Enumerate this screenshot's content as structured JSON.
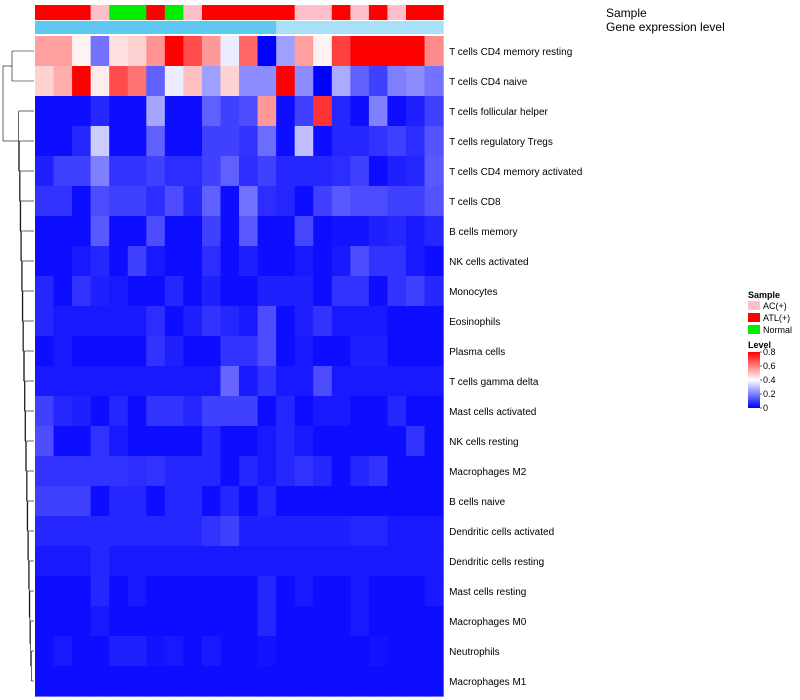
{
  "chart_data": {
    "type": "heatmap",
    "title": "",
    "annotation_rows": [
      "Sample",
      "Gene expression level"
    ],
    "sample_groups": [
      "ATL(+)",
      "ATL(+)",
      "ATL(+)",
      "AC(+)",
      "Normal",
      "Normal",
      "ATL(+)",
      "Normal",
      "AC(+)",
      "ATL(+)",
      "ATL(+)",
      "ATL(+)",
      "ATL(+)",
      "ATL(+)",
      "AC(+)",
      "AC(+)",
      "ATL(+)",
      "AC(+)",
      "ATL(+)",
      "AC(+)",
      "ATL(+)",
      "ATL(+)"
    ],
    "expression_levels": [
      "high",
      "high",
      "high",
      "high",
      "high",
      "high",
      "high",
      "high",
      "high",
      "high",
      "high",
      "high",
      "high",
      "low",
      "low",
      "low",
      "low",
      "low",
      "low",
      "low",
      "low",
      "low"
    ],
    "rows": [
      "T cells CD4 memory resting",
      "T cells CD4 naive",
      "T cells follicular helper",
      "T cells regulatory  Tregs",
      "T cells CD4 memory activated",
      "T cells CD8",
      "B cells memory",
      "NK cells activated",
      "Monocytes",
      "Eosinophils",
      "Plasma cells",
      "T cells gamma delta",
      "Mast cells activated",
      "NK cells resting",
      "Macrophages M2",
      "B cells naive",
      "Dendritic cells activated",
      "Dendritic cells resting",
      "Mast cells resting",
      "Macrophages M0",
      "Neutrophils",
      "Macrophages M1"
    ],
    "values": [
      [
        0.55,
        0.55,
        0.42,
        0.18,
        0.45,
        0.47,
        0.57,
        0.8,
        0.68,
        0.56,
        0.37,
        0.64,
        0.0,
        0.25,
        0.55,
        0.42,
        0.7,
        0.8,
        0.8,
        0.8,
        0.8,
        0.58
      ],
      [
        0.47,
        0.53,
        0.8,
        0.43,
        0.68,
        0.62,
        0.15,
        0.37,
        0.5,
        0.25,
        0.47,
        0.22,
        0.22,
        0.8,
        0.22,
        0.0,
        0.27,
        0.15,
        0.1,
        0.2,
        0.22,
        0.18
      ],
      [
        0.02,
        0.02,
        0.02,
        0.06,
        0.02,
        0.02,
        0.26,
        0.02,
        0.02,
        0.15,
        0.1,
        0.12,
        0.56,
        0.02,
        0.1,
        0.72,
        0.06,
        0.02,
        0.2,
        0.02,
        0.05,
        0.1
      ],
      [
        0.02,
        0.02,
        0.06,
        0.32,
        0.02,
        0.02,
        0.15,
        0.02,
        0.02,
        0.1,
        0.1,
        0.08,
        0.17,
        0.02,
        0.3,
        0.02,
        0.06,
        0.06,
        0.08,
        0.1,
        0.07,
        0.13
      ],
      [
        0.05,
        0.1,
        0.1,
        0.2,
        0.08,
        0.08,
        0.1,
        0.07,
        0.07,
        0.1,
        0.15,
        0.07,
        0.1,
        0.06,
        0.06,
        0.06,
        0.07,
        0.1,
        0.02,
        0.05,
        0.06,
        0.14
      ],
      [
        0.08,
        0.08,
        0.02,
        0.12,
        0.1,
        0.1,
        0.07,
        0.12,
        0.06,
        0.15,
        0.02,
        0.18,
        0.07,
        0.06,
        0.02,
        0.1,
        0.14,
        0.12,
        0.12,
        0.1,
        0.1,
        0.13
      ],
      [
        0.02,
        0.02,
        0.02,
        0.14,
        0.02,
        0.02,
        0.12,
        0.02,
        0.02,
        0.1,
        0.02,
        0.14,
        0.02,
        0.02,
        0.11,
        0.02,
        0.03,
        0.03,
        0.05,
        0.06,
        0.04,
        0.06
      ],
      [
        0.02,
        0.02,
        0.04,
        0.06,
        0.02,
        0.1,
        0.04,
        0.02,
        0.02,
        0.07,
        0.02,
        0.05,
        0.02,
        0.02,
        0.04,
        0.02,
        0.04,
        0.12,
        0.08,
        0.08,
        0.04,
        0.02
      ],
      [
        0.06,
        0.02,
        0.08,
        0.05,
        0.04,
        0.02,
        0.02,
        0.06,
        0.02,
        0.05,
        0.02,
        0.02,
        0.05,
        0.05,
        0.05,
        0.02,
        0.08,
        0.08,
        0.02,
        0.08,
        0.1,
        0.06
      ],
      [
        0.06,
        0.04,
        0.04,
        0.04,
        0.04,
        0.04,
        0.07,
        0.02,
        0.05,
        0.08,
        0.06,
        0.04,
        0.12,
        0.02,
        0.05,
        0.08,
        0.04,
        0.04,
        0.04,
        0.02,
        0.02,
        0.02
      ],
      [
        0.02,
        0.04,
        0.02,
        0.02,
        0.02,
        0.02,
        0.08,
        0.05,
        0.02,
        0.02,
        0.08,
        0.08,
        0.12,
        0.02,
        0.04,
        0.02,
        0.02,
        0.05,
        0.05,
        0.02,
        0.02,
        0.02
      ],
      [
        0.04,
        0.04,
        0.04,
        0.04,
        0.04,
        0.04,
        0.04,
        0.04,
        0.04,
        0.04,
        0.16,
        0.04,
        0.08,
        0.04,
        0.04,
        0.12,
        0.04,
        0.04,
        0.04,
        0.04,
        0.04,
        0.04
      ],
      [
        0.1,
        0.06,
        0.05,
        0.02,
        0.06,
        0.02,
        0.08,
        0.08,
        0.06,
        0.1,
        0.1,
        0.1,
        0.02,
        0.06,
        0.02,
        0.04,
        0.04,
        0.02,
        0.02,
        0.06,
        0.02,
        0.02
      ],
      [
        0.12,
        0.02,
        0.02,
        0.08,
        0.04,
        0.02,
        0.02,
        0.02,
        0.02,
        0.06,
        0.02,
        0.02,
        0.04,
        0.06,
        0.04,
        0.02,
        0.02,
        0.02,
        0.02,
        0.02,
        0.08,
        0.02
      ],
      [
        0.08,
        0.08,
        0.08,
        0.08,
        0.08,
        0.07,
        0.08,
        0.06,
        0.06,
        0.06,
        0.02,
        0.06,
        0.04,
        0.06,
        0.08,
        0.06,
        0.02,
        0.06,
        0.08,
        0.02,
        0.02,
        0.02
      ],
      [
        0.1,
        0.1,
        0.1,
        0.02,
        0.06,
        0.06,
        0.02,
        0.06,
        0.06,
        0.02,
        0.06,
        0.02,
        0.06,
        0.02,
        0.02,
        0.02,
        0.02,
        0.02,
        0.02,
        0.02,
        0.02,
        0.02
      ],
      [
        0.06,
        0.06,
        0.06,
        0.06,
        0.06,
        0.06,
        0.06,
        0.06,
        0.06,
        0.08,
        0.1,
        0.05,
        0.05,
        0.05,
        0.05,
        0.05,
        0.05,
        0.06,
        0.06,
        0.04,
        0.04,
        0.04
      ],
      [
        0.04,
        0.04,
        0.04,
        0.06,
        0.04,
        0.04,
        0.04,
        0.04,
        0.04,
        0.04,
        0.04,
        0.04,
        0.04,
        0.04,
        0.04,
        0.04,
        0.04,
        0.04,
        0.04,
        0.04,
        0.04,
        0.04
      ],
      [
        0.02,
        0.02,
        0.02,
        0.06,
        0.02,
        0.04,
        0.02,
        0.02,
        0.02,
        0.02,
        0.02,
        0.02,
        0.06,
        0.02,
        0.04,
        0.02,
        0.02,
        0.04,
        0.02,
        0.02,
        0.02,
        0.04
      ],
      [
        0.02,
        0.02,
        0.02,
        0.04,
        0.02,
        0.02,
        0.02,
        0.02,
        0.02,
        0.02,
        0.02,
        0.02,
        0.06,
        0.02,
        0.02,
        0.02,
        0.02,
        0.04,
        0.02,
        0.02,
        0.02,
        0.02
      ],
      [
        0.02,
        0.04,
        0.02,
        0.02,
        0.05,
        0.05,
        0.03,
        0.04,
        0.02,
        0.04,
        0.02,
        0.02,
        0.03,
        0.02,
        0.02,
        0.02,
        0.02,
        0.02,
        0.03,
        0.02,
        0.02,
        0.02
      ],
      [
        0.02,
        0.02,
        0.02,
        0.02,
        0.02,
        0.02,
        0.02,
        0.02,
        0.02,
        0.02,
        0.02,
        0.02,
        0.02,
        0.02,
        0.02,
        0.02,
        0.02,
        0.02,
        0.02,
        0.02,
        0.02,
        0.02
      ]
    ],
    "color_range": [
      0,
      0.8
    ],
    "legend": {
      "sample_title": "Sample",
      "sample_entries": [
        {
          "label": "AC(+)",
          "color": "#ffc0cb"
        },
        {
          "label": "ATL(+)",
          "color": "#ff0000"
        },
        {
          "label": "Normal",
          "color": "#00ee00"
        }
      ],
      "level_title": "Level",
      "level_ticks": [
        "0.8",
        "0.6",
        "0.4",
        "0.2",
        "0"
      ],
      "level_tick_values": [
        0.8,
        0.6,
        0.4,
        0.2,
        0
      ]
    },
    "colors": {
      "low": "#0000ff",
      "mid": "#ffffff",
      "high": "#ff0000",
      "expr_high": "#5ec8f0",
      "expr_low": "#a8e0f8"
    }
  }
}
